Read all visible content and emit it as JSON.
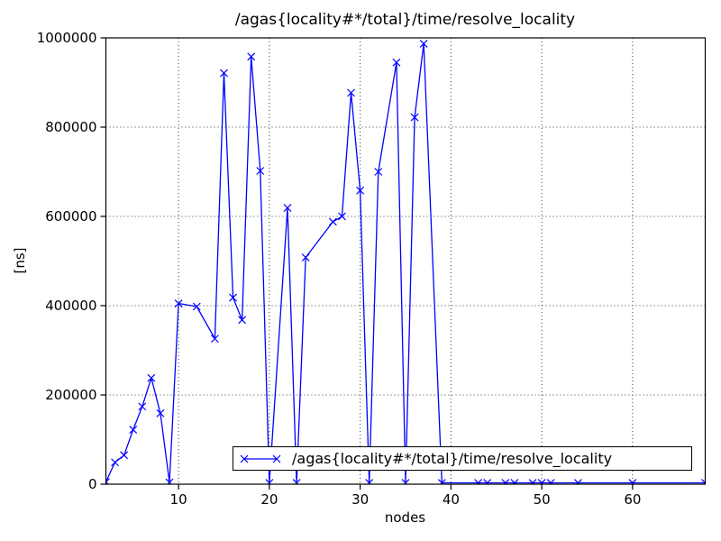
{
  "chart_data": {
    "type": "line",
    "title": "/agas{locality#*/total}/time/resolve_locality",
    "xlabel": "nodes",
    "ylabel": "[ns]",
    "xlim": [
      2,
      68
    ],
    "ylim": [
      0,
      1000000
    ],
    "x_ticks": [
      10,
      20,
      30,
      40,
      50,
      60
    ],
    "y_ticks": [
      0,
      200000,
      400000,
      600000,
      800000,
      1000000
    ],
    "grid": true,
    "grid_style": "dotted",
    "legend": {
      "position": "lower-right-inside",
      "border": true
    },
    "series": [
      {
        "name": "/agas{locality#*/total}/time/resolve_locality",
        "color": "#0000ff",
        "marker": "x",
        "x": [
          2,
          3,
          4,
          5,
          6,
          7,
          8,
          9,
          10,
          12,
          14,
          15,
          16,
          17,
          18,
          19,
          20,
          22,
          23,
          24,
          27,
          28,
          29,
          30,
          31,
          32,
          34,
          35,
          36,
          37,
          39,
          43,
          44,
          46,
          47,
          49,
          50,
          51,
          54,
          60,
          68
        ],
        "y": [
          5000,
          49000,
          65000,
          122000,
          174000,
          238000,
          159000,
          4000,
          405000,
          398000,
          326000,
          921000,
          418000,
          368000,
          958000,
          702000,
          3000,
          619000,
          3000,
          508000,
          588000,
          600000,
          877000,
          658000,
          3000,
          700000,
          945000,
          3000,
          822000,
          987000,
          3000,
          3000,
          3000,
          3000,
          3000,
          3000,
          3000,
          3000,
          3000,
          3000,
          3000
        ]
      }
    ]
  }
}
